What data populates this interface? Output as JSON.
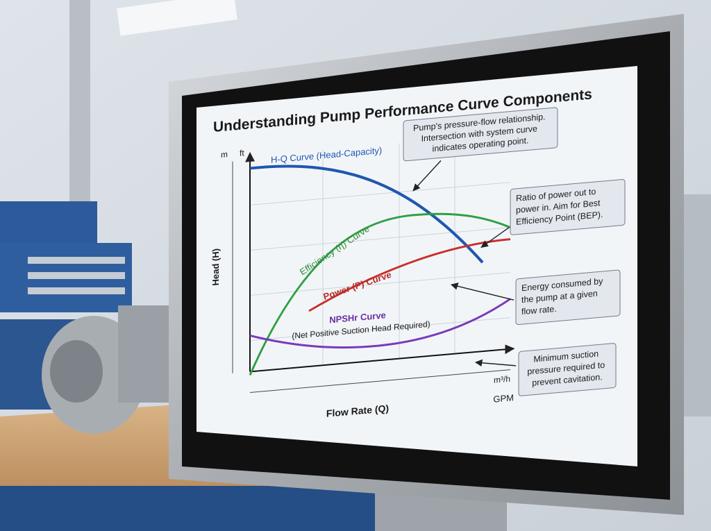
{
  "title": "Understanding Pump Performance Curve Components",
  "axes": {
    "y_units": [
      "m",
      "ft"
    ],
    "y_label": "Head (H)",
    "x_units": [
      "m³/h",
      "GPM"
    ],
    "x_label": "Flow Rate (Q)"
  },
  "curves": [
    {
      "label": "H-Q Curve (Head-Capacity)"
    },
    {
      "label": "Efficiency (η) Curve"
    },
    {
      "label": "Power (P) Curve"
    },
    {
      "label": "NPSHr Curve",
      "sublabel": "(Net Positive Suction Head Required)"
    }
  ],
  "callouts": [
    {
      "lines": [
        "Pump's pressure-flow relationship.",
        "Intersection with system curve",
        "indicates operating point."
      ]
    },
    {
      "lines": [
        "Ratio of power out to",
        "power in. Aim for Best",
        "Efficiency Point (BEP)."
      ]
    },
    {
      "lines": [
        "Energy consumed by",
        "the pump at a given",
        "flow rate."
      ]
    },
    {
      "lines": [
        "Minimum suction",
        "pressure required to",
        "prevent cavitation."
      ]
    }
  ]
}
